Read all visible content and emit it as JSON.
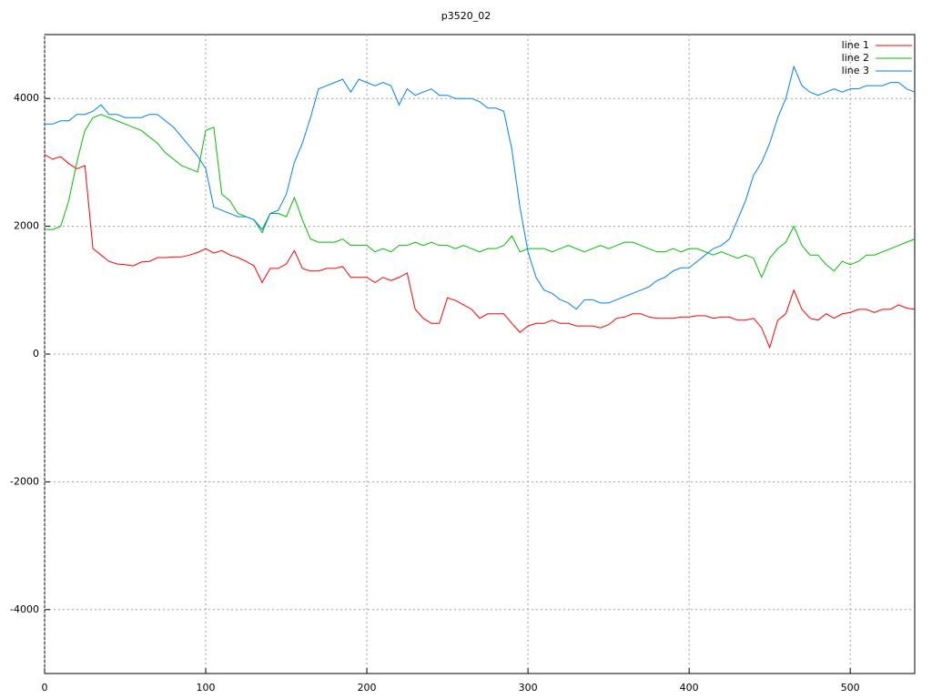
{
  "chart_data": {
    "type": "line",
    "title": "p3520_02",
    "x": [
      0,
      5,
      10,
      15,
      20,
      25,
      30,
      35,
      40,
      45,
      50,
      55,
      60,
      65,
      70,
      75,
      80,
      85,
      90,
      95,
      100,
      105,
      110,
      115,
      120,
      125,
      130,
      135,
      140,
      145,
      150,
      155,
      160,
      165,
      170,
      175,
      180,
      185,
      190,
      195,
      200,
      205,
      210,
      215,
      220,
      225,
      230,
      235,
      240,
      245,
      250,
      255,
      260,
      265,
      270,
      275,
      280,
      285,
      290,
      295,
      300,
      305,
      310,
      315,
      320,
      325,
      330,
      335,
      340,
      345,
      350,
      355,
      360,
      365,
      370,
      375,
      380,
      385,
      390,
      395,
      400,
      405,
      410,
      415,
      420,
      425,
      430,
      435,
      440,
      445,
      450,
      455,
      460,
      465,
      470,
      475,
      480,
      485,
      490,
      495,
      500,
      505,
      510,
      515,
      520,
      525,
      530,
      535,
      540
    ],
    "series": [
      {
        "name": "line 1",
        "color": "#ff0000",
        "values": [
          3120,
          3050,
          3090,
          2980,
          2900,
          2950,
          1650,
          1550,
          1450,
          1410,
          1400,
          1380,
          1440,
          1450,
          1510,
          1510,
          1520,
          1520,
          1550,
          1590,
          1650,
          1580,
          1620,
          1550,
          1510,
          1450,
          1380,
          1120,
          1340,
          1340,
          1410,
          1620,
          1340,
          1300,
          1300,
          1340,
          1340,
          1370,
          1200,
          1200,
          1200,
          1120,
          1200,
          1150,
          1200,
          1270,
          700,
          560,
          480,
          480,
          880,
          840,
          770,
          700,
          560,
          630,
          630,
          630,
          480,
          340,
          440,
          480,
          480,
          530,
          480,
          480,
          440,
          440,
          440,
          410,
          460,
          560,
          580,
          630,
          630,
          580,
          560,
          560,
          560,
          580,
          580,
          600,
          600,
          560,
          580,
          580,
          530,
          530,
          560,
          410,
          100,
          530,
          630,
          1000,
          700,
          560,
          530,
          630,
          560,
          630,
          650,
          700,
          700,
          650,
          700,
          700,
          770,
          720,
          700
        ]
      },
      {
        "name": "line 2",
        "color": "#00c000",
        "values": [
          1950,
          1950,
          2000,
          2400,
          3000,
          3500,
          3700,
          3750,
          3700,
          3650,
          3600,
          3550,
          3500,
          3400,
          3300,
          3150,
          3050,
          2950,
          2900,
          2850,
          3500,
          3550,
          2500,
          2400,
          2200,
          2150,
          2100,
          1900,
          2200,
          2200,
          2150,
          2450,
          2100,
          1800,
          1750,
          1750,
          1750,
          1800,
          1700,
          1700,
          1700,
          1600,
          1650,
          1600,
          1700,
          1700,
          1750,
          1700,
          1750,
          1700,
          1700,
          1650,
          1700,
          1650,
          1600,
          1650,
          1650,
          1700,
          1850,
          1600,
          1650,
          1650,
          1650,
          1600,
          1650,
          1700,
          1650,
          1600,
          1650,
          1700,
          1650,
          1700,
          1750,
          1750,
          1700,
          1650,
          1600,
          1600,
          1650,
          1600,
          1650,
          1650,
          1600,
          1550,
          1600,
          1550,
          1500,
          1550,
          1500,
          1200,
          1500,
          1650,
          1750,
          2000,
          1700,
          1550,
          1550,
          1400,
          1300,
          1450,
          1400,
          1450,
          1550,
          1550,
          1600,
          1650,
          1700,
          1750,
          1800
        ]
      },
      {
        "name": "line 3",
        "color": "#0080ff",
        "values": [
          3600,
          3600,
          3650,
          3650,
          3750,
          3750,
          3800,
          3900,
          3750,
          3750,
          3700,
          3700,
          3700,
          3750,
          3750,
          3650,
          3550,
          3400,
          3250,
          3100,
          2900,
          2300,
          2250,
          2200,
          2150,
          2150,
          2100,
          1950,
          2200,
          2250,
          2500,
          3000,
          3300,
          3700,
          4150,
          4200,
          4250,
          4300,
          4100,
          4300,
          4250,
          4200,
          4250,
          4200,
          3900,
          4150,
          4050,
          4100,
          4150,
          4050,
          4050,
          4000,
          4000,
          4000,
          3950,
          3850,
          3850,
          3800,
          3200,
          2300,
          1600,
          1200,
          1000,
          950,
          850,
          800,
          700,
          850,
          850,
          800,
          800,
          850,
          900,
          950,
          1000,
          1050,
          1150,
          1200,
          1300,
          1350,
          1350,
          1450,
          1550,
          1650,
          1700,
          1800,
          2100,
          2400,
          2800,
          3000,
          3300,
          3700,
          4000,
          4500,
          4200,
          4100,
          4050,
          4100,
          4150,
          4100,
          4150,
          4150,
          4200,
          4200,
          4200,
          4250,
          4250,
          4150,
          4100
        ]
      }
    ],
    "xlim": [
      0,
      540
    ],
    "ylim": [
      -5000,
      5000
    ],
    "xticks": [
      0,
      100,
      200,
      300,
      400,
      500
    ],
    "yticks": [
      -4000,
      -2000,
      0,
      2000,
      4000
    ],
    "grid": true,
    "legend": "top-right"
  }
}
